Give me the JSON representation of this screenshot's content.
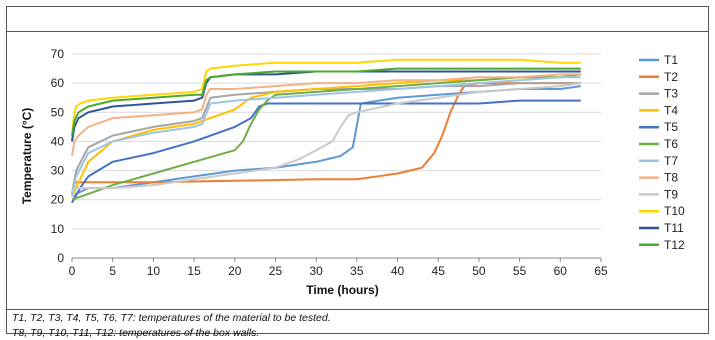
{
  "chart_data": {
    "type": "line",
    "xlabel": "Time (hours)",
    "ylabel": "Temperature (°C)",
    "xlim": [
      0,
      65
    ],
    "ylim": [
      0,
      70
    ],
    "xticks": [
      0,
      5,
      10,
      15,
      20,
      25,
      30,
      35,
      40,
      45,
      50,
      55,
      60,
      65
    ],
    "yticks": [
      0,
      10,
      20,
      30,
      40,
      50,
      60,
      70
    ],
    "grid": "horizontal",
    "legend_position": "right",
    "series": [
      {
        "name": "T1",
        "color": "#5b9bd5",
        "x": [
          0,
          0.5,
          2,
          5,
          10,
          15,
          20,
          25,
          30,
          33,
          34.5,
          35.5,
          40,
          45,
          50,
          55,
          60,
          62.5
        ],
        "y": [
          19,
          22,
          24,
          24,
          26,
          28,
          30,
          31,
          33,
          35,
          38,
          53,
          55,
          56,
          57,
          58,
          58,
          59
        ]
      },
      {
        "name": "T2",
        "color": "#ed7d31",
        "x": [
          0,
          0.4,
          2,
          10,
          20,
          30,
          35,
          40,
          43,
          44.5,
          45.5,
          46.5,
          47.5,
          48.2,
          50,
          55,
          60,
          62.5
        ],
        "y": [
          22,
          26,
          26,
          26,
          26.5,
          27,
          27,
          29,
          31,
          36,
          42,
          50,
          56,
          59,
          60,
          60,
          60,
          60
        ]
      },
      {
        "name": "T3",
        "color": "#a5a5a5",
        "x": [
          0,
          0.5,
          2,
          5,
          10,
          15,
          16,
          17,
          20,
          25,
          30,
          35,
          40,
          45,
          50,
          55,
          60,
          62.5
        ],
        "y": [
          22,
          30,
          38,
          42,
          45,
          47,
          48,
          55,
          56,
          57,
          58,
          58,
          58,
          59,
          59,
          60,
          60,
          60
        ]
      },
      {
        "name": "T4",
        "color": "#ffc000",
        "x": [
          0,
          1,
          2,
          5,
          10,
          15,
          16,
          17,
          18,
          20,
          22,
          25,
          30,
          35,
          40,
          45,
          50,
          55,
          60,
          62.5
        ],
        "y": [
          21,
          27,
          33,
          40,
          44,
          46,
          47,
          48,
          49,
          51,
          55,
          57,
          58,
          59,
          60,
          61,
          61,
          62,
          62,
          63
        ]
      },
      {
        "name": "T5",
        "color": "#4472c4",
        "x": [
          0,
          1,
          2,
          5,
          10,
          15,
          20,
          22,
          23,
          24,
          25,
          26,
          30,
          35,
          40,
          45,
          50,
          55,
          60,
          62.5
        ],
        "y": [
          19,
          24,
          28,
          33,
          36,
          40,
          45,
          48,
          52,
          53,
          53,
          53,
          53,
          53,
          53,
          53,
          53,
          54,
          54,
          54
        ]
      },
      {
        "name": "T6",
        "color": "#70ad47",
        "x": [
          0,
          1,
          2,
          5,
          10,
          15,
          20,
          21,
          22,
          23,
          24,
          25,
          30,
          35,
          40,
          45,
          50,
          55,
          60,
          62.5
        ],
        "y": [
          20,
          21,
          22,
          25,
          29,
          33,
          37,
          40,
          46,
          51,
          54,
          56,
          57,
          58,
          59,
          60,
          61,
          62,
          62,
          63
        ]
      },
      {
        "name": "T7",
        "color": "#9dc3e6",
        "x": [
          0,
          0.5,
          2,
          5,
          10,
          15,
          16,
          17,
          20,
          25,
          30,
          35,
          40,
          45,
          50,
          55,
          60,
          62.5
        ],
        "y": [
          21,
          28,
          36,
          40,
          43,
          45,
          46,
          53,
          54,
          55,
          56,
          57,
          58,
          59,
          60,
          61,
          62,
          62
        ]
      },
      {
        "name": "T8",
        "color": "#f4b183",
        "x": [
          0,
          0.3,
          0.8,
          2,
          5,
          10,
          15,
          16,
          16.5,
          17,
          20,
          25,
          30,
          35,
          40,
          45,
          50,
          55,
          60,
          62.5
        ],
        "y": [
          35,
          40,
          42,
          45,
          48,
          49,
          50,
          51,
          56,
          58,
          58,
          59,
          60,
          60,
          61,
          61,
          62,
          62,
          63,
          63
        ]
      },
      {
        "name": "T9",
        "color": "#c9c9c9",
        "x": [
          0,
          0.5,
          2,
          5,
          10,
          15,
          20,
          25,
          28,
          30,
          32,
          33,
          34,
          35,
          40,
          45,
          50,
          55,
          60,
          62.5
        ],
        "y": [
          23,
          24,
          24,
          24,
          25,
          27,
          29,
          31,
          34,
          37,
          40,
          45,
          49,
          50,
          53,
          55,
          57,
          58,
          59,
          60
        ]
      },
      {
        "name": "T10",
        "color": "#ffd700",
        "x": [
          0,
          0.2,
          0.5,
          1,
          2,
          5,
          10,
          15,
          16,
          16.5,
          17,
          20,
          25,
          30,
          35,
          40,
          45,
          50,
          55,
          60,
          62.5
        ],
        "y": [
          40,
          48,
          52,
          53,
          54,
          55,
          56,
          57,
          58,
          64,
          65,
          66,
          67,
          67,
          67,
          68,
          68,
          68,
          68,
          67,
          67
        ]
      },
      {
        "name": "T11",
        "color": "#2f5597",
        "x": [
          0,
          0.3,
          0.8,
          2,
          5,
          10,
          15,
          16,
          16.5,
          17,
          20,
          25,
          30,
          35,
          40,
          45,
          50,
          55,
          60,
          62.5
        ],
        "y": [
          40,
          45,
          48,
          50,
          52,
          53,
          54,
          55,
          60,
          62,
          63,
          63,
          64,
          64,
          64,
          64,
          64,
          64,
          64,
          64
        ]
      },
      {
        "name": "T12",
        "color": "#4ea72e",
        "x": [
          0,
          0.3,
          0.8,
          2,
          5,
          10,
          15,
          16,
          16.5,
          17,
          20,
          25,
          30,
          35,
          40,
          45,
          50,
          55,
          60,
          62.5
        ],
        "y": [
          42,
          47,
          50,
          52,
          54,
          55,
          56,
          56,
          61,
          62,
          63,
          64,
          64,
          64,
          65,
          65,
          65,
          65,
          65,
          65
        ]
      }
    ]
  },
  "caption": {
    "line1": "T1, T2, T3, T4, T5, T6, T7: temperatures of the material to be tested.",
    "line2": "T8, T9, T10, T11, T12: temperatures of the box walls."
  }
}
